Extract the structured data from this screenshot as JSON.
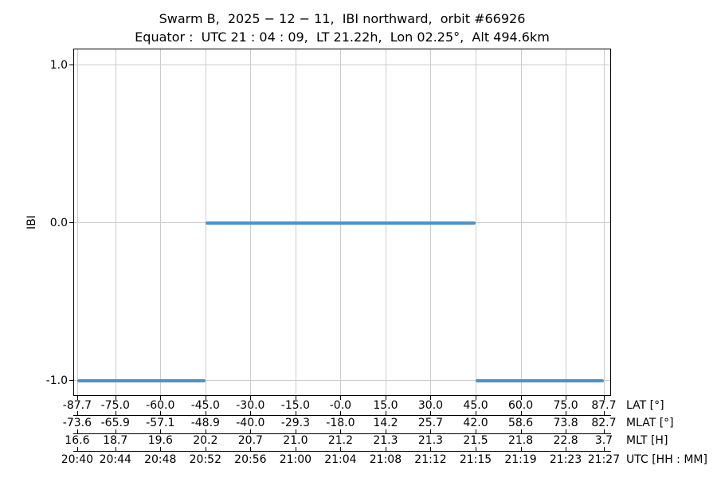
{
  "title": {
    "line1": "Swarm B,  2025 − 12 − 11,  IBI northward,  orbit #66926",
    "line2": "Equator :  UTC 21 : 04 : 09,  LT 21.22h,  Lon 02.25°,  Alt 494.6km"
  },
  "chart_data": {
    "type": "line",
    "title": "Swarm B,  2025 − 12 − 11,  IBI northward,  orbit #66926",
    "subtitle": "Equator :  UTC 21 : 04 : 09,  LT 21.22h,  Lon 02.25°,  Alt 494.6km",
    "ylabel": "IBI",
    "ylim": [
      -1.1,
      1.1
    ],
    "xlim_lat": [
      -89.0,
      90.1
    ],
    "grid": true,
    "legend_position": "none",
    "line_color": "#4a94c9",
    "grid_color": "#cccccc",
    "y_ticks": [
      {
        "value": 1.0,
        "label": "1.0"
      },
      {
        "value": 0.0,
        "label": "0.0"
      },
      {
        "value": -1.0,
        "label": "-1.0"
      }
    ],
    "x_tick_lats": [
      -87.7,
      -75.0,
      -60.0,
      -45.0,
      -30.0,
      -15.0,
      0.0,
      15.0,
      30.0,
      45.0,
      60.0,
      75.0,
      87.7
    ],
    "x_axis_rows": [
      {
        "label": "LAT [°]",
        "values": [
          "-87.7",
          "-75.0",
          "-60.0",
          "-45.0",
          "-30.0",
          "-15.0",
          "-0.0",
          "15.0",
          "30.0",
          "45.0",
          "60.0",
          "75.0",
          "87.7"
        ]
      },
      {
        "label": "MLAT [°]",
        "values": [
          "-73.6",
          "-65.9",
          "-57.1",
          "-48.9",
          "-40.0",
          "-29.3",
          "-18.0",
          "14.2",
          "25.7",
          "42.0",
          "58.6",
          "73.8",
          "82.7"
        ]
      },
      {
        "label": "MLT [H]",
        "values": [
          "16.6",
          "18.7",
          "19.6",
          "20.2",
          "20.7",
          "21.0",
          "21.2",
          "21.3",
          "21.3",
          "21.5",
          "21.8",
          "22.8",
          "3.7"
        ]
      },
      {
        "label": "UTC [HH : MM]",
        "values": [
          "20:40",
          "20:44",
          "20:48",
          "20:52",
          "20:56",
          "21:00",
          "21:04",
          "21:08",
          "21:12",
          "21:15",
          "21:19",
          "21:23",
          "21:27"
        ]
      }
    ],
    "series": [
      {
        "name": "IBI",
        "segments": [
          {
            "y": -1.0,
            "lat_start": -87.7,
            "lat_end": -45.0
          },
          {
            "y": 0.0,
            "lat_start": -45.0,
            "lat_end": 45.0
          },
          {
            "y": -1.0,
            "lat_start": 45.0,
            "lat_end": 87.7
          }
        ]
      }
    ]
  }
}
